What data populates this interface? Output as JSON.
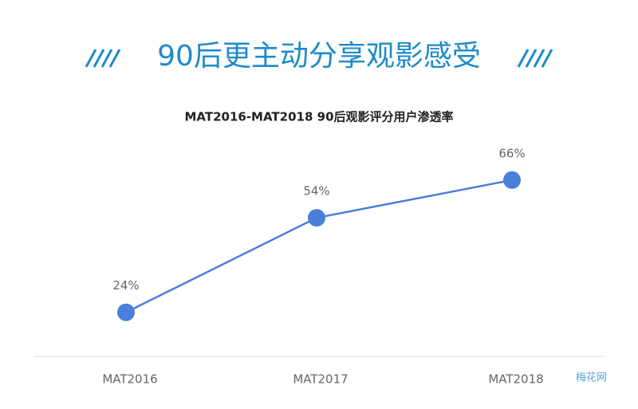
{
  "header": {
    "title": "90后更主动分享观影感受"
  },
  "chart_data": {
    "type": "line",
    "title": "MAT2016-MAT2018 90后观影评分用户渗透率",
    "categories": [
      "MAT2016",
      "MAT2017",
      "MAT2018"
    ],
    "values": [
      24,
      54,
      66
    ],
    "value_labels": [
      "24%",
      "54%",
      "66%"
    ],
    "color": "#4a7edb",
    "ylim": [
      10,
      70
    ],
    "watermark": "梅花网"
  }
}
